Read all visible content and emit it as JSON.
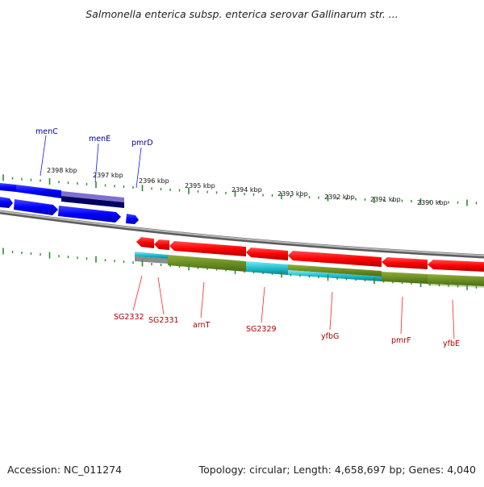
{
  "title": "Salmonella enterica subsp. enterica serovar Gallinarum str. ...",
  "accession_label": "Accession: NC_011274",
  "topology_label": "Topology: circular; Length: 4,658,697 bp; Genes: 4,040",
  "colors": {
    "plus_strand_gene": "#0000ff",
    "minus_strand_gene": "#ff0000",
    "backbone": "#8a8a8a",
    "ticks": "#2e8b2e",
    "cds_olive": "#6b8e23",
    "cds_cyan": "#20c0d0"
  },
  "scale": {
    "unit": "kbp",
    "labels": [
      "2398 kbp",
      "2397 kbp",
      "2396 kbp",
      "2395 kbp",
      "2394 kbp",
      "2393 kbp",
      "2392 kbp",
      "2391 kbp",
      "2390 kbp"
    ]
  },
  "genes_top": [
    "menC",
    "menE",
    "pmrD"
  ],
  "genes_bottom": [
    "SG2332",
    "SG2331",
    "arnT",
    "SG2329",
    "yfbG",
    "pmrF",
    "yfbE"
  ]
}
